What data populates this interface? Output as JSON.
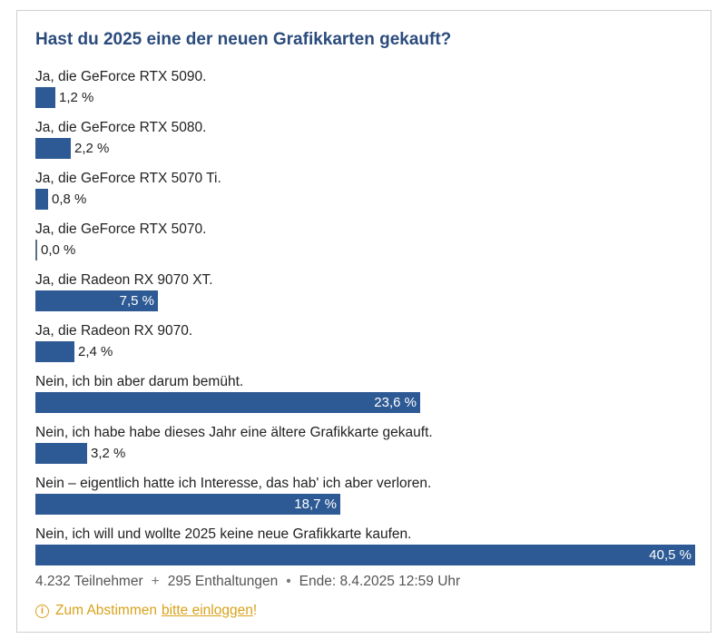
{
  "poll": {
    "title": "Hast du 2025 eine der neuen Grafikkarten gekauft?",
    "footer": {
      "participants": "4.232 Teilnehmer",
      "sep1": "+",
      "abstentions": "295 Enthaltungen",
      "sep2": "•",
      "end": "Ende: 8.4.2025 12:59 Uhr"
    },
    "login": {
      "icon": "info-icon",
      "prefix": "Zum Abstimmen",
      "link": "bitte einloggen",
      "suffix": "!"
    }
  },
  "colors": {
    "bar": "#2d5a94",
    "title": "#2a4b7c",
    "accent": "#d9a21b"
  },
  "chart_data": {
    "type": "bar",
    "title": "Hast du 2025 eine der neuen Grafikkarten gekauft?",
    "categories": [
      "Ja, die GeForce RTX 5090.",
      "Ja, die GeForce RTX 5080.",
      "Ja, die GeForce RTX 5070 Ti.",
      "Ja, die GeForce RTX 5070.",
      "Ja, die Radeon RX 9070 XT.",
      "Ja, die Radeon RX 9070.",
      "Nein, ich bin aber darum bemüht.",
      "Nein, ich habe habe dieses Jahr eine ältere Grafikkarte gekauft.",
      "Nein – eigentlich hatte ich Interesse, das hab' ich aber verloren.",
      "Nein, ich will und wollte 2025 keine neue Grafikkarte kaufen."
    ],
    "values": [
      1.2,
      2.2,
      0.8,
      0.0,
      7.5,
      2.4,
      23.6,
      3.2,
      18.7,
      40.5
    ],
    "value_labels": [
      "1,2 %",
      "2,2 %",
      "0,8 %",
      "0,0 %",
      "7,5 %",
      "2,4 %",
      "23,6 %",
      "3,2 %",
      "18,7 %",
      "40,5 %"
    ],
    "orientation": "horizontal",
    "xlim": [
      0,
      40.5
    ],
    "grid": false
  }
}
